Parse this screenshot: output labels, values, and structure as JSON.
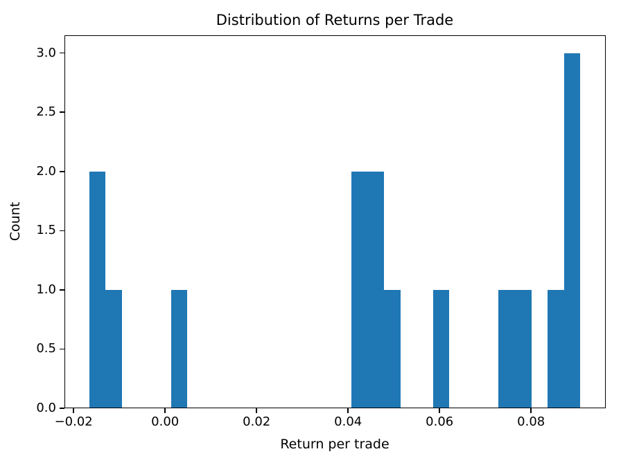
{
  "chart_data": {
    "type": "bar",
    "subtype": "histogram",
    "title": "Distribution of Returns per Trade",
    "xlabel": "Return per trade",
    "ylabel": "Count",
    "bar_color": "#1f77b4",
    "text_color": "#000000",
    "background_color": "#ffffff",
    "grid": false,
    "legend": null,
    "xlim": [
      -0.022,
      0.09633
    ],
    "ylim": [
      0,
      3.15
    ],
    "bins": {
      "start": -0.0166,
      "width": 0.00358,
      "count": 30,
      "counts": [
        2,
        1,
        0,
        0,
        0,
        1,
        0,
        0,
        0,
        0,
        0,
        0,
        0,
        0,
        0,
        0,
        2,
        2,
        1,
        0,
        0,
        1,
        0,
        0,
        0,
        1,
        1,
        0,
        1,
        3
      ]
    },
    "xticks": [
      {
        "value": -0.02,
        "label": "−0.02"
      },
      {
        "value": 0.0,
        "label": "0.00"
      },
      {
        "value": 0.02,
        "label": "0.02"
      },
      {
        "value": 0.04,
        "label": "0.04"
      },
      {
        "value": 0.06,
        "label": "0.06"
      },
      {
        "value": 0.08,
        "label": "0.08"
      }
    ],
    "yticks": [
      {
        "value": 0.0,
        "label": "0.0"
      },
      {
        "value": 0.5,
        "label": "0.5"
      },
      {
        "value": 1.0,
        "label": "1.0"
      },
      {
        "value": 1.5,
        "label": "1.5"
      },
      {
        "value": 2.0,
        "label": "2.0"
      },
      {
        "value": 2.5,
        "label": "2.5"
      },
      {
        "value": 3.0,
        "label": "3.0"
      }
    ]
  }
}
